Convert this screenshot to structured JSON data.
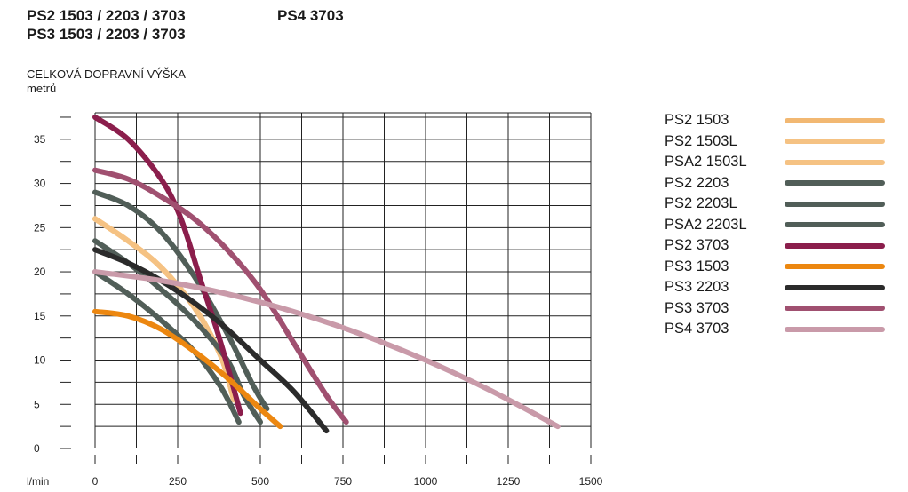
{
  "header": {
    "models_left_1": "PS2 1503 / 2203 / 3703",
    "models_left_2": "PS3 1503 / 2203 / 3703",
    "models_right": "PS4 3703",
    "ylabel_line1": "CELKOVÁ DOPRAVNÍ VÝŠKA",
    "ylabel_line2": "metrů"
  },
  "chart_data": {
    "type": "line",
    "title": "",
    "xlabel": "l/min",
    "ylabel": "CELKOVÁ DOPRAVNÍ VÝŠKA metrů",
    "xlim": [
      0,
      1500
    ],
    "ylim": [
      0,
      38
    ],
    "x_ticks": [
      0,
      250,
      500,
      750,
      1000,
      1250,
      1500
    ],
    "y_ticks": [
      0,
      5,
      10,
      15,
      20,
      25,
      30,
      35
    ],
    "grid": true,
    "legend_position": "right",
    "series": [
      {
        "name": "PS2 1503",
        "color": "#f2b872",
        "points": [
          [
            0,
            26
          ],
          [
            100,
            23.5
          ],
          [
            200,
            20.5
          ],
          [
            300,
            16
          ],
          [
            380,
            10.5
          ],
          [
            420,
            5.5
          ]
        ]
      },
      {
        "name": "PS2 1503L",
        "color": "#f5c283",
        "points": [
          [
            0,
            26
          ],
          [
            100,
            23.5
          ],
          [
            200,
            20.5
          ],
          [
            300,
            16
          ],
          [
            380,
            10.5
          ],
          [
            420,
            5.5
          ]
        ]
      },
      {
        "name": "PSA2 1503L",
        "color": "#f5c283",
        "points": [
          [
            0,
            26
          ],
          [
            100,
            23.5
          ],
          [
            200,
            20.5
          ],
          [
            300,
            16
          ],
          [
            380,
            10.5
          ],
          [
            420,
            5.5
          ]
        ]
      },
      {
        "name": "PS2 2203",
        "color": "#515e58",
        "points": [
          [
            0,
            20
          ],
          [
            100,
            17.5
          ],
          [
            200,
            14.5
          ],
          [
            300,
            11
          ],
          [
            380,
            7
          ],
          [
            435,
            3
          ]
        ]
      },
      {
        "name": "PS2 2203L",
        "color": "#515e58",
        "points": [
          [
            0,
            23.5
          ],
          [
            100,
            21
          ],
          [
            200,
            18
          ],
          [
            300,
            14.5
          ],
          [
            400,
            10
          ],
          [
            450,
            6
          ],
          [
            500,
            3
          ]
        ]
      },
      {
        "name": "PSA2 2203L",
        "color": "#515e58",
        "points": [
          [
            0,
            29
          ],
          [
            100,
            27.5
          ],
          [
            200,
            24.5
          ],
          [
            300,
            19.5
          ],
          [
            400,
            13
          ],
          [
            480,
            7
          ],
          [
            520,
            4.5
          ]
        ]
      },
      {
        "name": "PS2 3703",
        "color": "#8b1e4c",
        "points": [
          [
            0,
            37.5
          ],
          [
            100,
            35
          ],
          [
            200,
            30.5
          ],
          [
            260,
            26
          ],
          [
            320,
            19
          ],
          [
            380,
            12
          ],
          [
            440,
            4
          ]
        ]
      },
      {
        "name": "PS3 1503",
        "color": "#ec8710",
        "points": [
          [
            0,
            15.5
          ],
          [
            100,
            15
          ],
          [
            200,
            13.5
          ],
          [
            300,
            11
          ],
          [
            400,
            8
          ],
          [
            500,
            4.5
          ],
          [
            560,
            2.5
          ]
        ]
      },
      {
        "name": "PS3 2203",
        "color": "#2b2b2b",
        "points": [
          [
            0,
            22.5
          ],
          [
            100,
            21
          ],
          [
            200,
            19
          ],
          [
            300,
            16.5
          ],
          [
            400,
            13.5
          ],
          [
            500,
            10
          ],
          [
            600,
            6.5
          ],
          [
            700,
            2
          ]
        ]
      },
      {
        "name": "PS3 3703",
        "color": "#a05070",
        "points": [
          [
            0,
            31.5
          ],
          [
            100,
            30.5
          ],
          [
            200,
            28.5
          ],
          [
            300,
            26
          ],
          [
            400,
            22.5
          ],
          [
            500,
            18
          ],
          [
            600,
            12
          ],
          [
            700,
            6
          ],
          [
            760,
            3
          ]
        ]
      },
      {
        "name": "PS4 3703",
        "color": "#c99aa9",
        "points": [
          [
            0,
            20
          ],
          [
            200,
            19
          ],
          [
            400,
            17.5
          ],
          [
            600,
            15.5
          ],
          [
            800,
            13
          ],
          [
            1000,
            10
          ],
          [
            1200,
            6.5
          ],
          [
            1400,
            2.5
          ]
        ]
      }
    ]
  }
}
